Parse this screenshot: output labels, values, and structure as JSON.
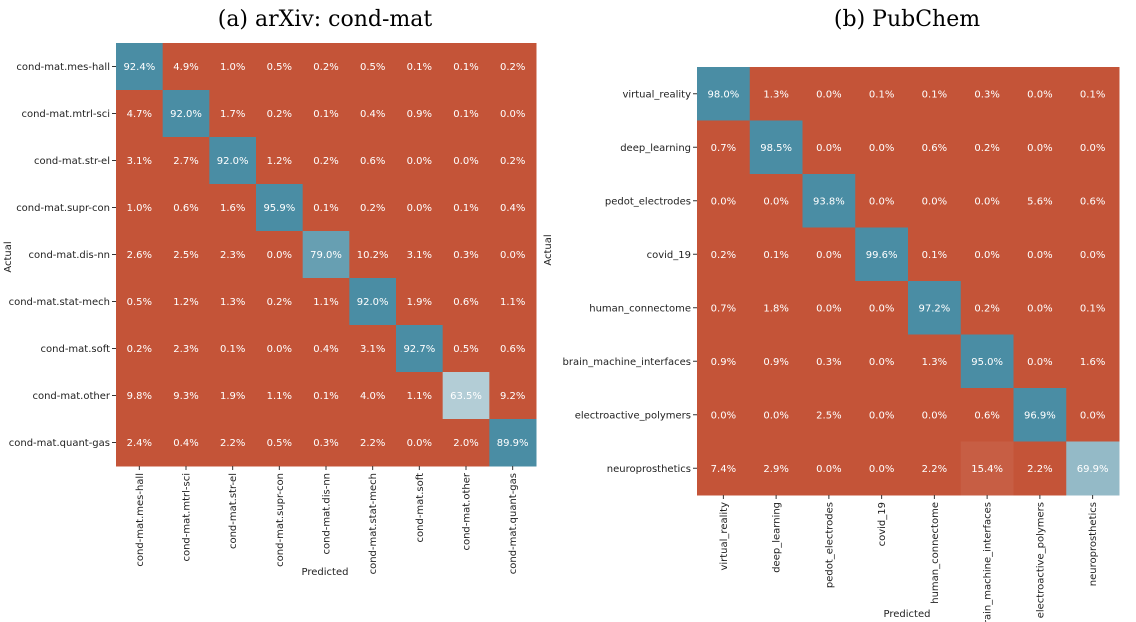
{
  "colors": {
    "low": "#c45438",
    "high": "#4a8da4",
    "text": "#ffffff"
  },
  "chart_data": [
    {
      "type": "heatmap",
      "title": "(a) arXiv: cond-mat",
      "xlabel": "Predicted",
      "ylabel": "Actual",
      "rows": [
        "cond-mat.mes-hall",
        "cond-mat.mtrl-sci",
        "cond-mat.str-el",
        "cond-mat.supr-con",
        "cond-mat.dis-nn",
        "cond-mat.stat-mech",
        "cond-mat.soft",
        "cond-mat.other",
        "cond-mat.quant-gas"
      ],
      "columns": [
        "cond-mat.mes-hall",
        "cond-mat.mtrl-sci",
        "cond-mat.str-el",
        "cond-mat.supr-con",
        "cond-mat.dis-nn",
        "cond-mat.stat-mech",
        "cond-mat.soft",
        "cond-mat.other",
        "cond-mat.quant-gas"
      ],
      "values": [
        [
          92.4,
          4.9,
          1.0,
          0.5,
          0.2,
          0.5,
          0.1,
          0.1,
          0.2
        ],
        [
          4.7,
          92.0,
          1.7,
          0.2,
          0.1,
          0.4,
          0.9,
          0.1,
          0.0
        ],
        [
          3.1,
          2.7,
          92.0,
          1.2,
          0.2,
          0.6,
          0.0,
          0.0,
          0.2
        ],
        [
          1.0,
          0.6,
          1.6,
          95.9,
          0.1,
          0.2,
          0.0,
          0.1,
          0.4
        ],
        [
          2.6,
          2.5,
          2.3,
          0.0,
          79.0,
          10.2,
          3.1,
          0.3,
          0.0
        ],
        [
          0.5,
          1.2,
          1.3,
          0.2,
          1.1,
          92.0,
          1.9,
          0.6,
          1.1
        ],
        [
          0.2,
          2.3,
          0.1,
          0.0,
          0.4,
          3.1,
          92.7,
          0.5,
          0.6
        ],
        [
          9.8,
          9.3,
          1.9,
          1.1,
          0.1,
          4.0,
          1.1,
          63.5,
          9.2
        ],
        [
          2.4,
          0.4,
          2.2,
          0.5,
          0.3,
          2.2,
          0.0,
          2.0,
          89.9
        ]
      ],
      "value_suffix": "%"
    },
    {
      "type": "heatmap",
      "title": "(b) PubChem",
      "xlabel": "Predicted",
      "ylabel": "Actual",
      "rows": [
        "virtual_reality",
        "deep_learning",
        "pedot_electrodes",
        "covid_19",
        "human_connectome",
        "brain_machine_interfaces",
        "electroactive_polymers",
        "neuroprosthetics"
      ],
      "columns": [
        "virtual_reality",
        "deep_learning",
        "pedot_electrodes",
        "covid_19",
        "human_connectome",
        "brain_machine_interfaces",
        "electroactive_polymers",
        "neuroprosthetics"
      ],
      "values": [
        [
          98.0,
          1.3,
          0.0,
          0.1,
          0.1,
          0.3,
          0.0,
          0.1
        ],
        [
          0.7,
          98.5,
          0.0,
          0.0,
          0.6,
          0.2,
          0.0,
          0.0
        ],
        [
          0.0,
          0.0,
          93.8,
          0.0,
          0.0,
          0.0,
          5.6,
          0.6
        ],
        [
          0.2,
          0.1,
          0.0,
          99.6,
          0.1,
          0.0,
          0.0,
          0.0
        ],
        [
          0.7,
          1.8,
          0.0,
          0.0,
          97.2,
          0.2,
          0.0,
          0.1
        ],
        [
          0.9,
          0.9,
          0.3,
          0.0,
          1.3,
          95.0,
          0.0,
          1.6
        ],
        [
          0.0,
          0.0,
          2.5,
          0.0,
          0.0,
          0.6,
          96.9,
          0.0
        ],
        [
          7.4,
          2.9,
          0.0,
          0.0,
          2.2,
          15.4,
          2.2,
          69.9
        ]
      ],
      "value_suffix": "%"
    }
  ]
}
